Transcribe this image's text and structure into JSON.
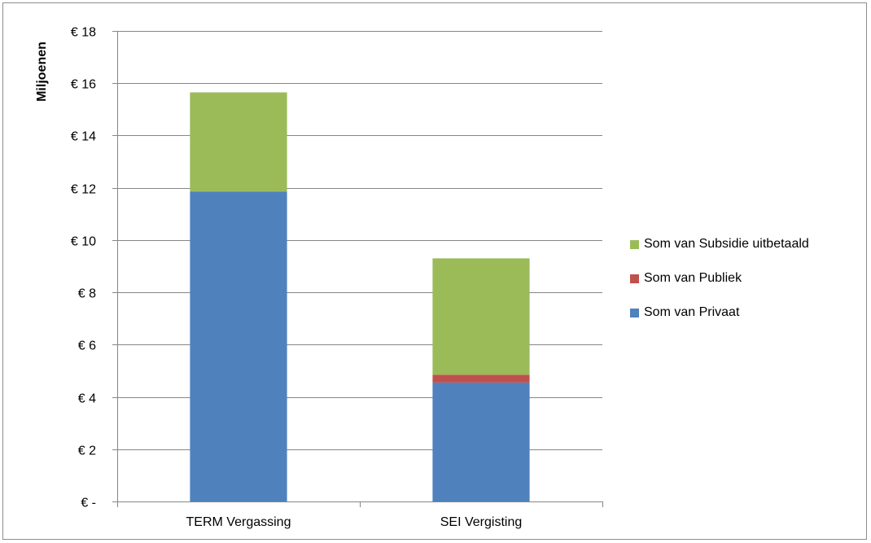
{
  "chart_data": {
    "type": "bar",
    "stacked": true,
    "ylabel": "Miljoenen",
    "xlabel": "",
    "title": "",
    "ylim": [
      0,
      18
    ],
    "yticks": [
      {
        "value": 0,
        "label": "€ -"
      },
      {
        "value": 2,
        "label": "€ 2"
      },
      {
        "value": 4,
        "label": "€ 4"
      },
      {
        "value": 6,
        "label": "€ 6"
      },
      {
        "value": 8,
        "label": "€ 8"
      },
      {
        "value": 10,
        "label": "€ 10"
      },
      {
        "value": 12,
        "label": "€ 12"
      },
      {
        "value": 14,
        "label": "€ 14"
      },
      {
        "value": 16,
        "label": "€ 16"
      },
      {
        "value": 18,
        "label": "€ 18"
      }
    ],
    "grid": true,
    "legend_position": "right",
    "categories": [
      "TERM Vergassing",
      "SEI Vergisting"
    ],
    "series": [
      {
        "name": "Som van Privaat",
        "color": "#4f81bd",
        "values": [
          11.85,
          4.55
        ]
      },
      {
        "name": "Som van Publiek",
        "color": "#c0504d",
        "values": [
          0,
          0.3
        ]
      },
      {
        "name": "Som van Subsidie uitbetaald",
        "color": "#9bbb59",
        "values": [
          3.8,
          4.45
        ]
      }
    ],
    "legend_order": [
      "Som van Subsidie uitbetaald",
      "Som van Publiek",
      "Som van Privaat"
    ]
  }
}
